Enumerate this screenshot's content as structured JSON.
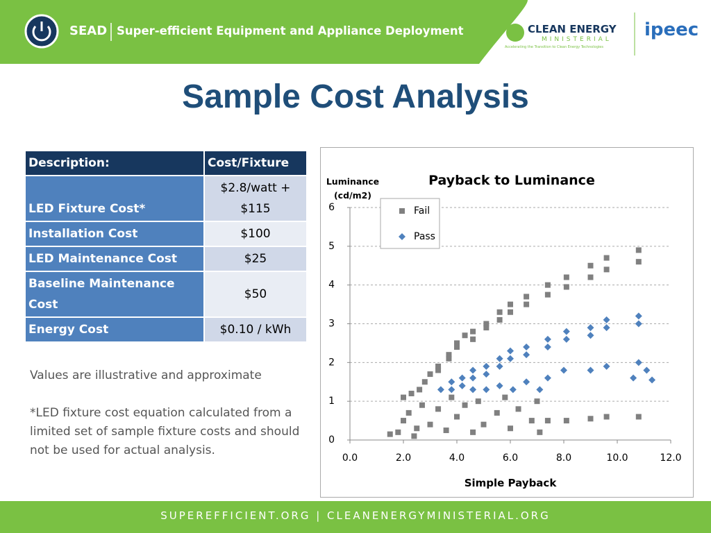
{
  "header": {
    "brand": "SEAD",
    "tagline": "Super-efficient Equipment and Appliance Deployment",
    "partner": "CLEAN ENERGY",
    "partner_sub": "MINISTERIAL",
    "partner_motto": "Accelerating the Transition to Clean Energy Technologies",
    "partner2": "ipeec"
  },
  "title": "Sample Cost Analysis",
  "table": {
    "header": [
      "Description:",
      "Cost/Fixture"
    ],
    "rows": [
      [
        "LED Fixture Cost*",
        "$2.8/watt + $115"
      ],
      [
        "Installation Cost",
        "$100"
      ],
      [
        "LED Maintenance Cost",
        "$25"
      ],
      [
        "Baseline Maintenance Cost",
        "$50"
      ],
      [
        "Energy Cost",
        "$0.10 / kWh"
      ]
    ]
  },
  "notes": [
    "Values are illustrative and approximate",
    "*LED fixture cost equation calculated from a limited set of sample fixture costs and should not be used for actual analysis."
  ],
  "chart_data": {
    "type": "scatter",
    "title": "Payback to Luminance",
    "x_label": "Simple Payback",
    "y_label": "Luminance (cd/m2)",
    "xlim": [
      0,
      12
    ],
    "xticks": [
      {
        "value": 0,
        "label": "0.0"
      },
      {
        "value": 2,
        "label": "2.0"
      },
      {
        "value": 4,
        "label": "4.0"
      },
      {
        "value": 6,
        "label": "6.0"
      },
      {
        "value": 8,
        "label": "8.0"
      },
      {
        "value": 10,
        "label": "10.0"
      },
      {
        "value": 12,
        "label": "12.0"
      }
    ],
    "ylim": [
      0,
      6
    ],
    "yticks": [
      0,
      1,
      2,
      3,
      4,
      5,
      6
    ],
    "grid": true,
    "legend": "upper-left",
    "series": [
      {
        "name": "Fail",
        "color": "#808080",
        "marker": "square",
        "x": [
          2.0,
          2.3,
          2.6,
          2.8,
          3.0,
          3.3,
          3.7,
          4.0,
          4.3,
          4.6,
          5.1,
          5.6,
          6.0,
          6.6,
          7.4,
          8.1,
          9.0,
          9.6,
          10.8,
          10.8,
          9.6,
          9.0,
          8.1,
          7.4,
          6.6,
          6.0,
          5.6,
          5.1,
          4.6,
          4.0,
          3.7,
          3.3,
          1.5,
          1.8,
          2.0,
          2.2,
          2.5,
          2.7,
          3.0,
          3.3,
          3.6,
          4.0,
          4.3,
          4.6,
          5.0,
          5.5,
          6.0,
          6.3,
          6.8,
          7.1,
          7.4,
          8.1,
          9.0,
          9.6,
          10.8,
          7.0,
          5.8,
          4.8,
          3.8,
          2.4
        ],
        "values": [
          1.1,
          1.2,
          1.3,
          1.5,
          1.7,
          1.9,
          2.2,
          2.5,
          2.7,
          2.8,
          3.0,
          3.3,
          3.5,
          3.7,
          4.0,
          4.2,
          4.5,
          4.7,
          4.9,
          4.6,
          4.4,
          4.2,
          3.95,
          3.75,
          3.5,
          3.3,
          3.1,
          2.9,
          2.6,
          2.4,
          2.1,
          1.8,
          0.15,
          0.2,
          0.5,
          0.7,
          0.3,
          0.9,
          0.4,
          0.8,
          0.25,
          0.6,
          0.9,
          0.2,
          0.4,
          0.7,
          0.3,
          0.8,
          0.5,
          0.2,
          0.5,
          0.5,
          0.55,
          0.6,
          0.6,
          1.0,
          1.1,
          1.0,
          1.1,
          0.1
        ]
      },
      {
        "name": "Pass",
        "color": "#4f81bd",
        "marker": "diamond",
        "x": [
          3.4,
          3.8,
          4.2,
          4.6,
          5.1,
          5.6,
          6.0,
          6.6,
          7.4,
          8.1,
          9.0,
          9.6,
          10.8,
          10.8,
          9.6,
          9.0,
          8.1,
          7.4,
          6.6,
          6.0,
          5.6,
          5.1,
          4.6,
          4.2,
          3.8,
          5.6,
          6.1,
          6.6,
          7.1,
          7.4,
          8.0,
          9.0,
          9.6,
          10.8,
          11.1,
          11.3,
          10.6,
          4.6,
          5.1
        ],
        "values": [
          1.3,
          1.5,
          1.6,
          1.8,
          1.9,
          2.1,
          2.3,
          2.4,
          2.6,
          2.8,
          2.9,
          3.1,
          3.2,
          3.0,
          2.9,
          2.7,
          2.6,
          2.4,
          2.2,
          2.1,
          1.9,
          1.7,
          1.6,
          1.4,
          1.3,
          1.4,
          1.3,
          1.5,
          1.3,
          1.6,
          1.8,
          1.8,
          1.9,
          2.0,
          1.8,
          1.55,
          1.6,
          1.3,
          1.3
        ]
      }
    ]
  },
  "footer": "SuperEfficient.org | CleanEnergyMinisterial.org"
}
